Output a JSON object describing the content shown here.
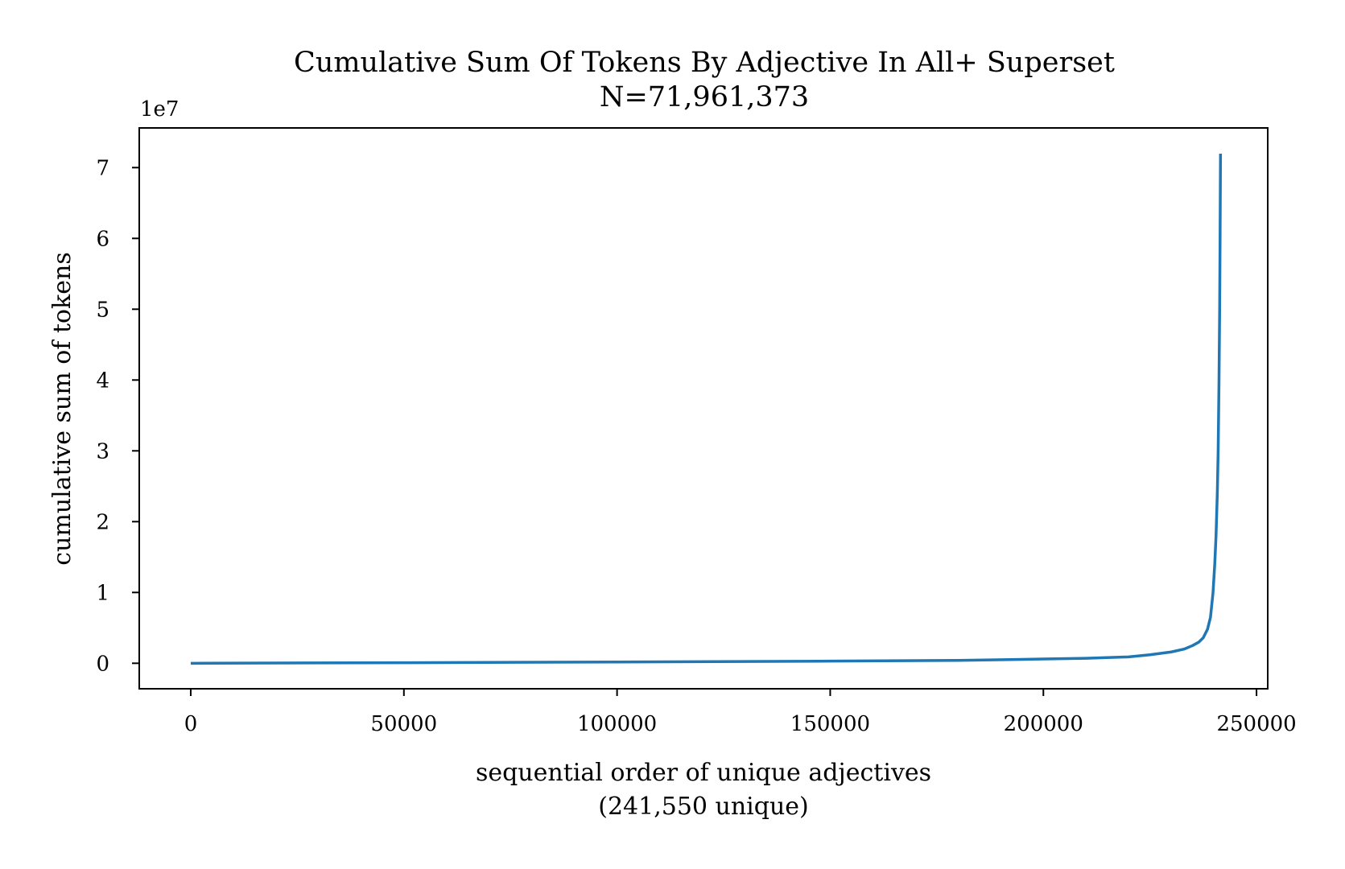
{
  "chart_data": {
    "type": "line",
    "title": "Cumulative Sum Of Tokens By Adjective In All+ Superset",
    "subtitle": "N=71,961,373",
    "xlabel": "sequential order of unique adjectives",
    "xlabel_sub": "(241,550 unique)",
    "ylabel": "cumulative sum of tokens",
    "y_offset_label": "1e7",
    "xlim": [
      -12078,
      252627
    ],
    "ylim": [
      -3600000,
      75600000
    ],
    "x_ticks": [
      0,
      50000,
      100000,
      150000,
      200000,
      250000
    ],
    "x_tick_labels": [
      "0",
      "50000",
      "100000",
      "150000",
      "200000",
      "250000"
    ],
    "y_ticks": [
      0,
      10000000,
      20000000,
      30000000,
      40000000,
      50000000,
      60000000,
      70000000
    ],
    "y_tick_labels": [
      "0",
      "1",
      "2",
      "3",
      "4",
      "5",
      "6",
      "7"
    ],
    "grid": false,
    "legend": "none",
    "series_color": "#1f77b4",
    "series": [
      {
        "x": [
          0,
          50000,
          100000,
          150000,
          180000,
          200000,
          210000,
          220000,
          225000,
          230000,
          233000,
          235000,
          236500,
          237500,
          238500,
          239200,
          239800,
          240200,
          240500,
          240800,
          241000,
          241200,
          241350,
          241450,
          241550
        ],
        "y": [
          0,
          80000,
          180000,
          300000,
          400000,
          600000,
          700000,
          900000,
          1200000,
          1600000,
          2000000,
          2500000,
          3000000,
          3600000,
          4800000,
          6500000,
          10000000,
          14000000,
          18000000,
          24000000,
          30000000,
          40000000,
          50000000,
          60000000,
          71961373
        ]
      }
    ]
  }
}
